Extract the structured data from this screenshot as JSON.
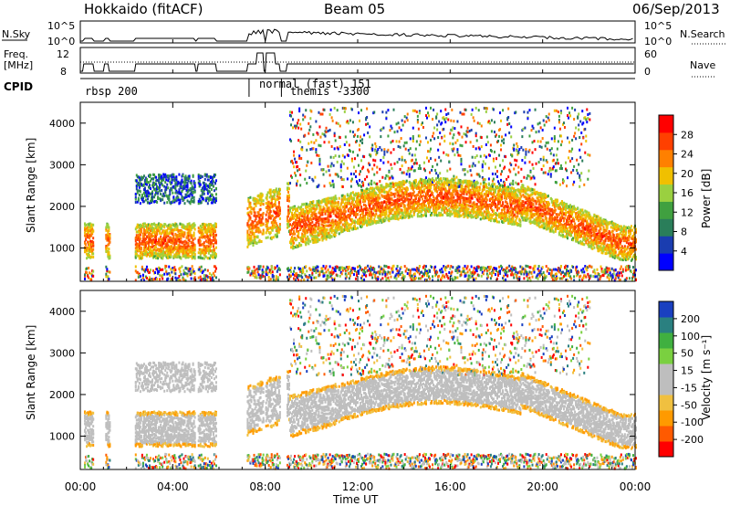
{
  "header": {
    "station": "Hokkaido (fitACF)",
    "beam": "Beam 05",
    "date": "06/Sep/2013"
  },
  "top_panels": {
    "nsky_label": "N.Sky",
    "nsky_ticks": [
      "10^5",
      "10^0"
    ],
    "nsearch_label": "N.Search",
    "nsearch_ticks": [
      "10^5",
      "10^0"
    ],
    "freq_label": [
      "Freq.",
      "[MHz]"
    ],
    "freq_ticks": [
      "12",
      "8"
    ],
    "nave_label": "Nave",
    "nave_ticks": [
      "60",
      "0"
    ],
    "cpid_label": "CPID",
    "cpid_entries": [
      "rbsp 200",
      "normal (fast) 151",
      "themis -3300"
    ]
  },
  "colors": {
    "power_scale": [
      "#0000ff",
      "#1a3db0",
      "#2a7e5a",
      "#40a040",
      "#9ad040",
      "#f0c000",
      "#ff8000",
      "#ff4000",
      "#ff0000"
    ],
    "velocity_scale": [
      "#ff0000",
      "#ff5a00",
      "#ff9a00",
      "#f0c040",
      "#bebebe",
      "#bebebe",
      "#7ad040",
      "#40b040",
      "#2a8080",
      "#1a40c0"
    ],
    "ground_scatter": "#bebebe"
  },
  "chart_data": [
    {
      "type": "heatmap",
      "name": "power",
      "ylabel": "Slant Range [km]",
      "ylim": [
        200,
        4500
      ],
      "yticks": [
        1000,
        2000,
        3000,
        4000
      ],
      "xlim": [
        0,
        24
      ],
      "xticks": [
        "00:00",
        "04:00",
        "08:00",
        "12:00",
        "16:00",
        "20:00",
        "00:00"
      ],
      "colorbar_label": "Power [dB]",
      "colorbar_ticks": [
        "28",
        "24",
        "20",
        "16",
        "12",
        "8",
        "4"
      ],
      "colorbar_range": [
        0,
        30
      ]
    },
    {
      "type": "heatmap",
      "name": "velocity",
      "ylabel": "Slant Range [km]",
      "ylim": [
        200,
        4500
      ],
      "yticks": [
        1000,
        2000,
        3000,
        4000
      ],
      "xlim": [
        0,
        24
      ],
      "xticks": [
        "00:00",
        "04:00",
        "08:00",
        "12:00",
        "16:00",
        "20:00",
        "00:00"
      ],
      "xlabel": "Time UT",
      "colorbar_label": "Velocity [m s⁻¹]",
      "colorbar_ticks": [
        "200",
        "100",
        "50",
        "15",
        "-15",
        "-50",
        "-100",
        "-200"
      ],
      "colorbar_range": [
        -250,
        250
      ]
    }
  ]
}
